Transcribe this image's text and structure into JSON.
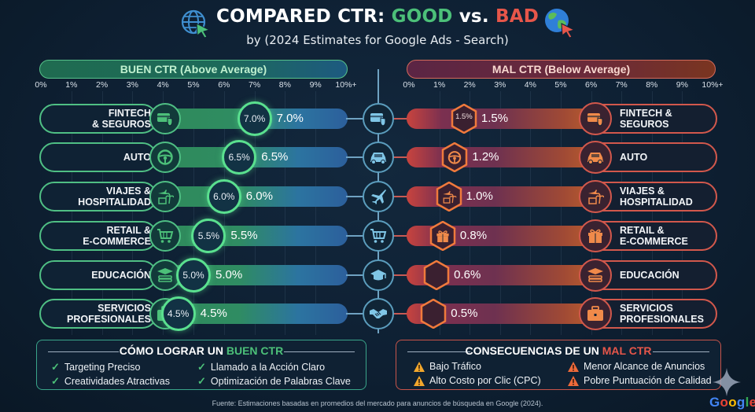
{
  "header": {
    "title_prefix": "COMPARED CTR: ",
    "title_good": "GOOD",
    "title_mid": " vs. ",
    "title_bad": "BAD",
    "subtitle": "by (2024 Estimates for Google Ads - Search)",
    "left_icon": "globe-cursor-icon",
    "right_icon": "earth-cursor-icon"
  },
  "colors": {
    "good": "#4cc079",
    "bad": "#e6564a",
    "background": "#0e2033",
    "center_axis": "#6fa2c2"
  },
  "chart_data": {
    "type": "bar",
    "title": "COMPARED CTR: GOOD vs. BAD",
    "subtitle": "by (2024 Estimates for Google Ads - Search)",
    "categories": [
      "FINTECH & SEGUROS",
      "AUTO",
      "VIAJES & HOSPITALIDAD",
      "RETAIL & E-COMMERCE",
      "EDUCACIÓN",
      "SERVICIOS PROFESIONALES"
    ],
    "xlim": [
      0,
      10
    ],
    "tick_labels": [
      "0%",
      "1%",
      "2%",
      "3%",
      "4%",
      "5%",
      "6%",
      "7%",
      "8%",
      "9%",
      "10%+"
    ],
    "grid": true,
    "series": [
      {
        "name": "BUEN CTR (Above Average)",
        "values": [
          7.0,
          6.5,
          6.0,
          5.5,
          5.0,
          4.5
        ],
        "labels": [
          "7.0%",
          "6.5%",
          "6.0%",
          "5.5%",
          "5.0%",
          "4.5%"
        ]
      },
      {
        "name": "MAL CTR (Below Average)",
        "values": [
          1.5,
          1.2,
          1.0,
          0.8,
          0.6,
          0.5
        ],
        "labels": [
          "1.5%",
          "1.2%",
          "1.0%",
          "0.8%",
          "0.6%",
          "0.5%"
        ]
      }
    ]
  },
  "good_panel": {
    "heading": "BUEN CTR (Above Average)",
    "rows": [
      {
        "label_line1": "FINTECH",
        "label_line2": "& SEGUROS",
        "icon": "credit-card-shield-icon",
        "badge": "7.0%",
        "value": "7.0%"
      },
      {
        "label_line1": "AUTO",
        "label_line2": "",
        "icon": "steering-wheel-icon",
        "badge": "6.5%",
        "value": "6.5%"
      },
      {
        "label_line1": "VIAJES &",
        "label_line2": "HOSPITALIDAD",
        "icon": "plane-palm-icon",
        "badge": "6.0%",
        "value": "6.0%"
      },
      {
        "label_line1": "RETAIL &",
        "label_line2": "E-COMMERCE",
        "icon": "shopping-cart-icon",
        "badge": "5.5%",
        "value": "5.5%"
      },
      {
        "label_line1": "EDUCACIÓN",
        "label_line2": "",
        "icon": "graduation-books-icon",
        "badge": "5.0%",
        "value": "5.0%"
      },
      {
        "label_line1": "SERVICIOS",
        "label_line2": "PROFESIONALES",
        "icon": "briefcase-icon",
        "badge": "4.5%",
        "value": "4.5%"
      }
    ]
  },
  "center_icons": [
    "credit-card-shield-icon",
    "car-icon",
    "airplane-icon",
    "shopping-cart-icon",
    "graduation-cap-icon",
    "handshake-icon"
  ],
  "bad_panel": {
    "heading": "MAL CTR (Below Average)",
    "rows": [
      {
        "label_line1": "FINTECH &",
        "label_line2": "SEGUROS",
        "icon": "credit-card-shield-icon",
        "badge": "1.5%",
        "badge_icon": "",
        "value": "1.5%"
      },
      {
        "label_line1": "AUTO",
        "label_line2": "",
        "icon": "car-icon",
        "badge": "",
        "badge_icon": "steering-wheel-icon",
        "value": "1.2%"
      },
      {
        "label_line1": "VIAJES &",
        "label_line2": "HOSPITALIDAD",
        "icon": "plane-palm-icon",
        "badge": "",
        "badge_icon": "plane-palm-icon",
        "value": "1.0%"
      },
      {
        "label_line1": "RETAIL &",
        "label_line2": "E-COMMERCE",
        "icon": "gift-icon",
        "badge": "",
        "badge_icon": "gift-icon",
        "value": "0.8%"
      },
      {
        "label_line1": "EDUCACIÓN",
        "label_line2": "",
        "icon": "graduation-books-icon",
        "badge": "",
        "badge_icon": "",
        "value": "0.6%"
      },
      {
        "label_line1": "SERVICIOS",
        "label_line2": "PROFESIONALES",
        "icon": "briefcase-icon",
        "badge": "",
        "badge_icon": "",
        "value": "0.5%"
      }
    ]
  },
  "tips_box": {
    "title_prefix": "CÓMO LOGRAR UN ",
    "title_highlight": "BUEN CTR",
    "items": [
      "Targeting Preciso",
      "Creatividades Atractivas",
      "Llamado a la Acción Claro",
      "Optimización de Palabras Clave"
    ]
  },
  "consequences_box": {
    "title_prefix": "CONSECUENCIAS DE UN ",
    "title_highlight": "MAL CTR",
    "items": [
      "Bajo Tráfico",
      "Alto Costo por Clic (CPC)",
      "Menor Alcance de Anuncios",
      "Pobre Puntuación de Calidad"
    ]
  },
  "footer": {
    "source": "Fuente: Estimaciones basadas en promedios del mercado para anuncios de búsqueda en Google (2024).",
    "brand": "Google"
  }
}
